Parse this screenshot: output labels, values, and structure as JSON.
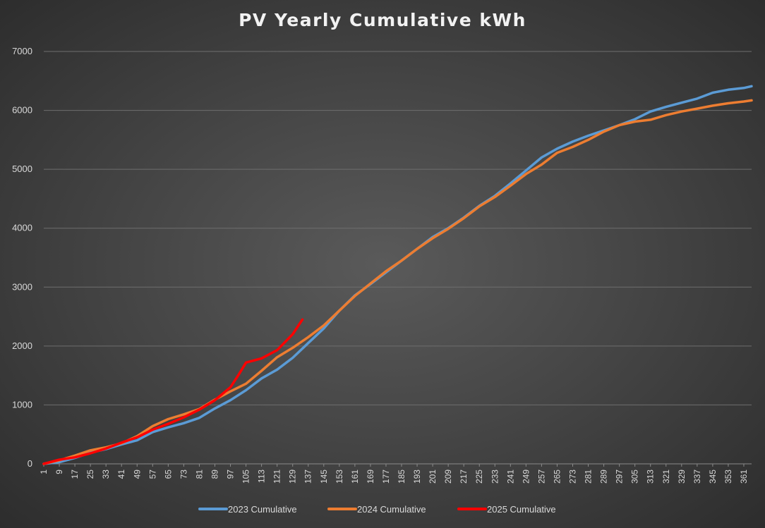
{
  "chart_data": {
    "type": "line",
    "title": "PV Yearly Cumulative kWh",
    "xlabel": "",
    "ylabel": "",
    "ylim": [
      0,
      7000
    ],
    "xlim": [
      1,
      365
    ],
    "y_ticks": [
      "0",
      "1000",
      "2000",
      "3000",
      "4000",
      "5000",
      "6000",
      "7000"
    ],
    "x_ticks": [
      "1",
      "9",
      "17",
      "25",
      "33",
      "41",
      "49",
      "57",
      "65",
      "73",
      "81",
      "89",
      "97",
      "105",
      "113",
      "121",
      "129",
      "137",
      "145",
      "153",
      "161",
      "169",
      "177",
      "185",
      "193",
      "201",
      "209",
      "217",
      "225",
      "233",
      "241",
      "249",
      "257",
      "265",
      "273",
      "281",
      "289",
      "297",
      "305",
      "313",
      "321",
      "329",
      "337",
      "345",
      "353",
      "361"
    ],
    "grid": "horizontal",
    "legend_position": "bottom",
    "series": [
      {
        "name": "2023 Cumulative",
        "color": "#5b9bd5",
        "points": [
          [
            1,
            0
          ],
          [
            9,
            30
          ],
          [
            17,
            100
          ],
          [
            25,
            190
          ],
          [
            33,
            250
          ],
          [
            41,
            330
          ],
          [
            49,
            400
          ],
          [
            57,
            540
          ],
          [
            65,
            620
          ],
          [
            73,
            690
          ],
          [
            81,
            780
          ],
          [
            89,
            940
          ],
          [
            97,
            1080
          ],
          [
            105,
            1250
          ],
          [
            113,
            1450
          ],
          [
            121,
            1600
          ],
          [
            129,
            1800
          ],
          [
            137,
            2050
          ],
          [
            145,
            2300
          ],
          [
            153,
            2600
          ],
          [
            161,
            2860
          ],
          [
            169,
            3050
          ],
          [
            177,
            3250
          ],
          [
            185,
            3450
          ],
          [
            193,
            3650
          ],
          [
            201,
            3850
          ],
          [
            209,
            4000
          ],
          [
            217,
            4180
          ],
          [
            225,
            4380
          ],
          [
            233,
            4550
          ],
          [
            241,
            4760
          ],
          [
            249,
            4980
          ],
          [
            257,
            5200
          ],
          [
            265,
            5350
          ],
          [
            273,
            5470
          ],
          [
            281,
            5570
          ],
          [
            289,
            5660
          ],
          [
            297,
            5750
          ],
          [
            305,
            5850
          ],
          [
            313,
            5980
          ],
          [
            321,
            6060
          ],
          [
            329,
            6130
          ],
          [
            337,
            6200
          ],
          [
            345,
            6300
          ],
          [
            353,
            6350
          ],
          [
            361,
            6380
          ],
          [
            365,
            6410
          ]
        ]
      },
      {
        "name": "2024 Cumulative",
        "color": "#ed7d31",
        "points": [
          [
            1,
            0
          ],
          [
            9,
            60
          ],
          [
            17,
            140
          ],
          [
            25,
            230
          ],
          [
            33,
            280
          ],
          [
            41,
            350
          ],
          [
            49,
            470
          ],
          [
            57,
            640
          ],
          [
            65,
            760
          ],
          [
            73,
            840
          ],
          [
            81,
            930
          ],
          [
            89,
            1090
          ],
          [
            97,
            1230
          ],
          [
            105,
            1360
          ],
          [
            113,
            1580
          ],
          [
            121,
            1810
          ],
          [
            129,
            1970
          ],
          [
            137,
            2150
          ],
          [
            145,
            2350
          ],
          [
            153,
            2600
          ],
          [
            161,
            2850
          ],
          [
            169,
            3060
          ],
          [
            177,
            3270
          ],
          [
            185,
            3450
          ],
          [
            193,
            3650
          ],
          [
            201,
            3830
          ],
          [
            209,
            3990
          ],
          [
            217,
            4170
          ],
          [
            225,
            4370
          ],
          [
            233,
            4530
          ],
          [
            241,
            4720
          ],
          [
            249,
            4920
          ],
          [
            257,
            5080
          ],
          [
            265,
            5280
          ],
          [
            273,
            5380
          ],
          [
            281,
            5500
          ],
          [
            289,
            5640
          ],
          [
            297,
            5750
          ],
          [
            305,
            5810
          ],
          [
            313,
            5840
          ],
          [
            321,
            5920
          ],
          [
            329,
            5980
          ],
          [
            337,
            6030
          ],
          [
            345,
            6080
          ],
          [
            353,
            6120
          ],
          [
            361,
            6150
          ],
          [
            365,
            6170
          ]
        ]
      },
      {
        "name": "2025 Cumulative",
        "color": "#ff0000",
        "points": [
          [
            1,
            0
          ],
          [
            9,
            70
          ],
          [
            17,
            110
          ],
          [
            25,
            180
          ],
          [
            33,
            260
          ],
          [
            41,
            360
          ],
          [
            49,
            450
          ],
          [
            57,
            580
          ],
          [
            65,
            680
          ],
          [
            73,
            790
          ],
          [
            81,
            920
          ],
          [
            89,
            1080
          ],
          [
            97,
            1300
          ],
          [
            101,
            1500
          ],
          [
            105,
            1720
          ],
          [
            113,
            1790
          ],
          [
            121,
            1930
          ],
          [
            129,
            2200
          ],
          [
            134,
            2450
          ]
        ]
      }
    ]
  }
}
